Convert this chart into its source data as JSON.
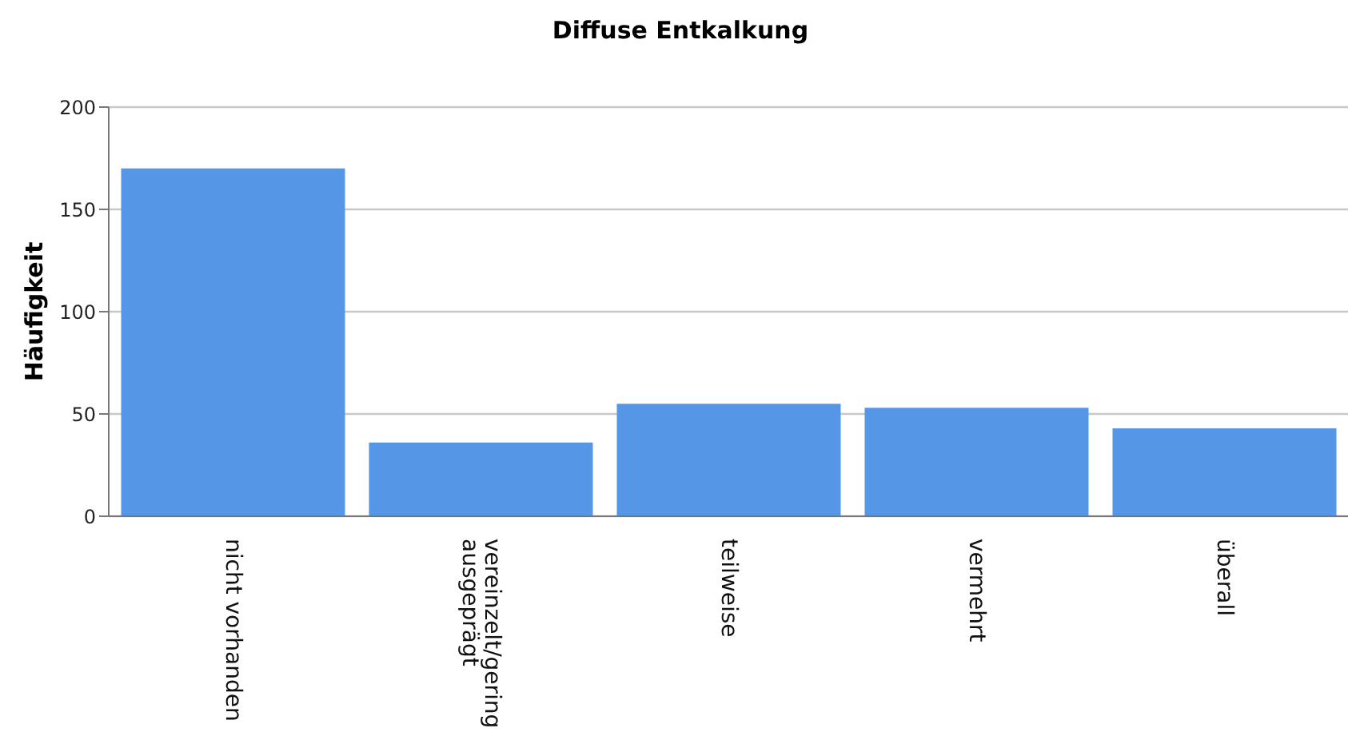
{
  "chart_data": {
    "type": "bar",
    "title": "Diffuse Entkalkung",
    "ylabel": "Häufigkeit",
    "categories": [
      "nicht vorhanden",
      "vereinzelt/gering ausgeprägt",
      "teilweise",
      "vermehrt",
      "überall"
    ],
    "values": [
      170,
      36,
      55,
      53,
      43
    ],
    "color": "#5596e6",
    "ylim": [
      0,
      200
    ],
    "yticks": [
      0,
      50,
      100,
      150,
      200
    ],
    "grid": "y"
  }
}
